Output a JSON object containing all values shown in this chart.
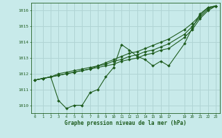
{
  "title": "Graphe pression niveau de la mer (hPa)",
  "bg_color": "#c8eaea",
  "grid_color": "#b0d4d4",
  "line_color": "#1e5c1e",
  "marker_color": "#1e5c1e",
  "xlim": [
    -0.5,
    23.5
  ],
  "ylim": [
    1009.5,
    1016.5
  ],
  "yticks": [
    1010,
    1011,
    1012,
    1013,
    1014,
    1015,
    1016
  ],
  "xticks": [
    0,
    1,
    2,
    3,
    4,
    5,
    6,
    7,
    8,
    9,
    10,
    11,
    12,
    13,
    14,
    15,
    16,
    17,
    19,
    20,
    21,
    22,
    23
  ],
  "series_x": [
    0,
    1,
    2,
    3,
    4,
    5,
    6,
    7,
    8,
    9,
    10,
    11,
    12,
    13,
    14,
    15,
    16,
    17,
    19,
    20,
    21,
    22,
    23
  ],
  "series": [
    [
      1011.6,
      1011.7,
      1011.8,
      1010.3,
      1009.8,
      1010.0,
      1010.0,
      1010.8,
      1011.0,
      1011.8,
      1012.4,
      1013.85,
      1013.5,
      1013.1,
      1012.9,
      1012.5,
      1012.8,
      1012.5,
      1013.9,
      1014.9,
      1015.8,
      1016.2,
      1016.3
    ],
    [
      1011.6,
      1011.7,
      1011.8,
      1012.0,
      1012.1,
      1012.2,
      1012.3,
      1012.4,
      1012.5,
      1012.7,
      1012.9,
      1013.1,
      1013.3,
      1013.4,
      1013.6,
      1013.8,
      1014.0,
      1014.2,
      1014.8,
      1015.2,
      1015.7,
      1016.2,
      1016.3
    ],
    [
      1011.6,
      1011.7,
      1011.8,
      1011.9,
      1012.0,
      1012.1,
      1012.2,
      1012.3,
      1012.5,
      1012.6,
      1012.8,
      1012.9,
      1013.1,
      1013.2,
      1013.4,
      1013.5,
      1013.7,
      1013.9,
      1014.5,
      1015.0,
      1015.6,
      1016.1,
      1016.3
    ],
    [
      1011.6,
      1011.7,
      1011.8,
      1011.9,
      1012.0,
      1012.1,
      1012.2,
      1012.3,
      1012.4,
      1012.5,
      1012.6,
      1012.8,
      1012.9,
      1013.0,
      1013.2,
      1013.3,
      1013.5,
      1013.6,
      1014.3,
      1014.8,
      1015.5,
      1016.0,
      1016.3
    ]
  ]
}
